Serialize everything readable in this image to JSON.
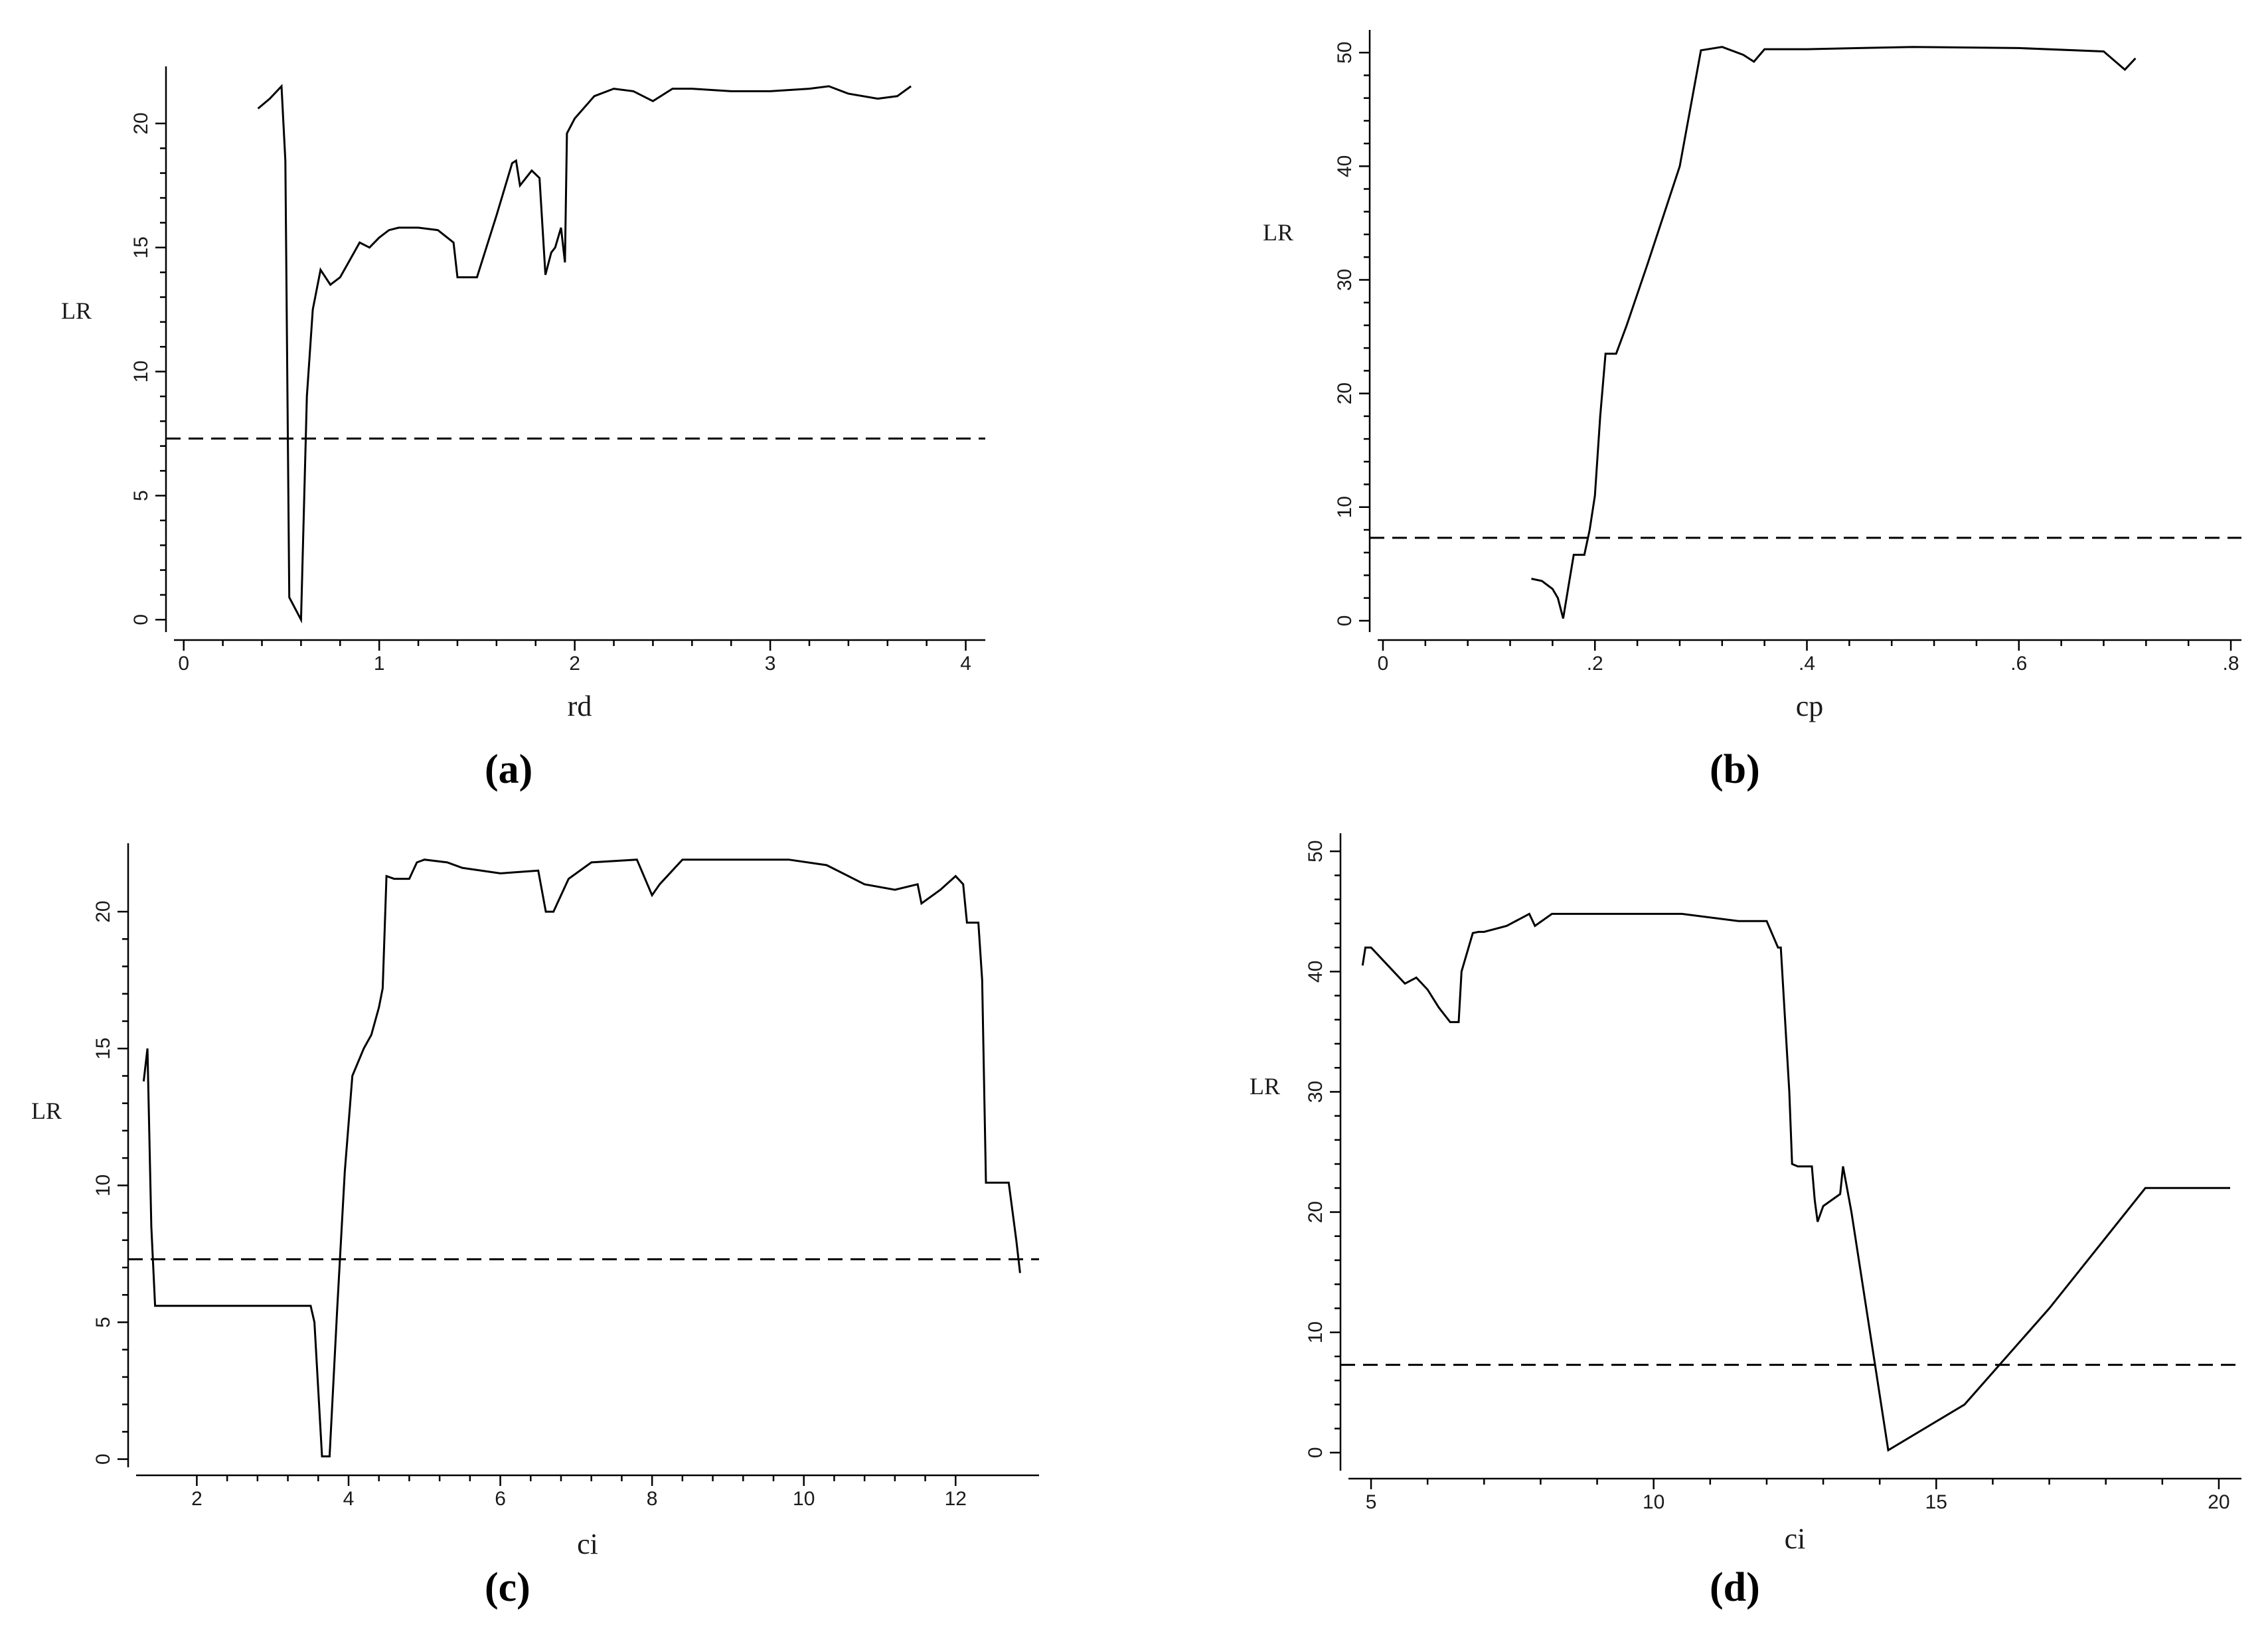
{
  "figure": {
    "panel_labels": [
      "(a)",
      "(b)",
      "(c)",
      "(d)"
    ]
  },
  "chart_data": [
    {
      "type": "line",
      "panel": "(a)",
      "xlabel": "rd",
      "ylabel": "LR",
      "xlim": [
        -0.05,
        4.1
      ],
      "ylim": [
        -0.5,
        22.3
      ],
      "xticks": [
        0,
        1,
        2,
        3,
        4
      ],
      "xtick_labels": [
        "0",
        "1",
        "2",
        "3",
        "4"
      ],
      "yticks": [
        0,
        5,
        10,
        15,
        20
      ],
      "ytick_labels": [
        "0",
        "5",
        "10",
        "15",
        "20"
      ],
      "threshold": 7.3,
      "series": [
        {
          "x": [
            0.38,
            0.44,
            0.5,
            0.52,
            0.54,
            0.6,
            0.63,
            0.66,
            0.7,
            0.75,
            0.8,
            0.85,
            0.9,
            0.95,
            1.0,
            1.05,
            1.1,
            1.2,
            1.3,
            1.38,
            1.4,
            1.5,
            1.6,
            1.68,
            1.7,
            1.72,
            1.75,
            1.78,
            1.82,
            1.85,
            1.88,
            1.9,
            1.93,
            1.95,
            1.96,
            2.0,
            2.1,
            2.2,
            2.3,
            2.4,
            2.5,
            2.6,
            2.8,
            3.0,
            3.2,
            3.3,
            3.4,
            3.55,
            3.65,
            3.72
          ],
          "y": [
            20.6,
            21.0,
            21.5,
            18.5,
            0.9,
            0.0,
            9.0,
            12.5,
            14.1,
            13.5,
            13.8,
            14.5,
            15.2,
            15.0,
            15.4,
            15.7,
            15.8,
            15.8,
            15.7,
            15.2,
            13.8,
            13.8,
            16.3,
            18.4,
            18.5,
            17.5,
            17.8,
            18.1,
            17.8,
            13.9,
            14.8,
            15.0,
            15.8,
            14.4,
            19.6,
            20.2,
            21.1,
            21.4,
            21.3,
            20.9,
            21.4,
            21.4,
            21.3,
            21.3,
            21.4,
            21.5,
            21.2,
            21.0,
            21.1,
            21.5
          ]
        }
      ]
    },
    {
      "type": "line",
      "panel": "(b)",
      "xlabel": "cp",
      "ylabel": "LR",
      "xlim": [
        -0.005,
        0.81
      ],
      "ylim": [
        -1,
        52
      ],
      "xticks": [
        0,
        0.2,
        0.4,
        0.6,
        0.8
      ],
      "xtick_labels": [
        "0",
        ".2",
        ".4",
        ".6",
        ".8"
      ],
      "yticks": [
        0,
        10,
        20,
        30,
        40,
        50
      ],
      "ytick_labels": [
        "0",
        "10",
        "20",
        "30",
        "40",
        "50"
      ],
      "threshold": 7.3,
      "series": [
        {
          "x": [
            0.14,
            0.15,
            0.16,
            0.165,
            0.17,
            0.175,
            0.18,
            0.19,
            0.195,
            0.2,
            0.205,
            0.21,
            0.22,
            0.23,
            0.25,
            0.28,
            0.3,
            0.32,
            0.34,
            0.35,
            0.36,
            0.4,
            0.5,
            0.6,
            0.68,
            0.7,
            0.71
          ],
          "y": [
            3.7,
            3.5,
            2.8,
            2.0,
            0.2,
            3.0,
            5.8,
            5.8,
            8.0,
            11.0,
            18.0,
            23.5,
            23.5,
            26.0,
            31.5,
            40.0,
            50.2,
            50.5,
            49.8,
            49.2,
            50.3,
            50.3,
            50.5,
            50.4,
            50.1,
            48.5,
            49.5
          ]
        }
      ]
    },
    {
      "type": "line",
      "panel": "(c)",
      "xlabel": "ci",
      "ylabel": "LR",
      "xlim": [
        1.2,
        13.1
      ],
      "ylim": [
        -0.3,
        22.5
      ],
      "xticks": [
        2,
        4,
        6,
        8,
        10,
        12
      ],
      "xtick_labels": [
        "2",
        "4",
        "6",
        "8",
        "10",
        "12"
      ],
      "yticks": [
        0,
        5,
        10,
        15,
        20
      ],
      "ytick_labels": [
        "0",
        "5",
        "10",
        "15",
        "20"
      ],
      "threshold": 7.3,
      "series": [
        {
          "x": [
            1.3,
            1.35,
            1.4,
            1.45,
            1.5,
            2.0,
            3.0,
            3.5,
            3.55,
            3.65,
            3.75,
            3.85,
            3.95,
            4.05,
            4.2,
            4.3,
            4.4,
            4.45,
            4.5,
            4.6,
            4.8,
            4.9,
            5.0,
            5.3,
            5.5,
            6.0,
            6.5,
            6.6,
            6.7,
            6.9,
            7.2,
            7.8,
            8.0,
            8.1,
            8.4,
            9.0,
            9.8,
            10.3,
            10.8,
            11.2,
            11.5,
            11.55,
            11.8,
            12.0,
            12.1,
            12.15,
            12.3,
            12.35,
            12.4,
            12.7,
            12.8,
            12.85
          ],
          "y": [
            13.8,
            15.0,
            8.5,
            5.6,
            5.6,
            5.6,
            5.6,
            5.6,
            5.0,
            0.1,
            0.1,
            5.5,
            10.5,
            14.0,
            15.0,
            15.5,
            16.5,
            17.2,
            21.3,
            21.2,
            21.2,
            21.8,
            21.9,
            21.8,
            21.6,
            21.4,
            21.5,
            20.0,
            20.0,
            21.2,
            21.8,
            21.9,
            20.6,
            21.0,
            21.9,
            21.9,
            21.9,
            21.7,
            21.0,
            20.8,
            21.0,
            20.3,
            20.8,
            21.3,
            21.0,
            19.6,
            19.6,
            17.5,
            10.1,
            10.1,
            8.0,
            6.8
          ]
        }
      ]
    },
    {
      "type": "line",
      "panel": "(d)",
      "xlabel": "ci",
      "ylabel": "LR",
      "xlim": [
        4.6,
        20.4
      ],
      "ylim": [
        -1.5,
        51.5
      ],
      "xticks": [
        5,
        10,
        15,
        20
      ],
      "xtick_labels": [
        "5",
        "10",
        "15",
        "20"
      ],
      "yticks": [
        0,
        10,
        20,
        30,
        40,
        50
      ],
      "ytick_labels": [
        "0",
        "10",
        "20",
        "30",
        "40",
        "50"
      ],
      "threshold": 7.3,
      "series": [
        {
          "x": [
            4.85,
            4.9,
            5.0,
            5.2,
            5.4,
            5.6,
            5.8,
            6.0,
            6.2,
            6.4,
            6.55,
            6.6,
            6.8,
            6.9,
            7.0,
            7.4,
            7.8,
            7.9,
            8.2,
            9.0,
            10.0,
            10.5,
            11.5,
            12.0,
            12.2,
            12.25,
            12.4,
            12.45,
            12.55,
            12.8,
            12.85,
            12.9,
            13.0,
            13.3,
            13.35,
            13.5,
            14.15,
            15.5,
            17.0,
            18.7,
            19.0,
            20.2
          ],
          "y": [
            40.5,
            42.0,
            42.0,
            41.0,
            40.0,
            39.0,
            39.5,
            38.5,
            37.0,
            35.8,
            35.8,
            40.0,
            43.2,
            43.3,
            43.3,
            43.8,
            44.8,
            43.8,
            44.8,
            44.8,
            44.8,
            44.8,
            44.2,
            44.2,
            42.0,
            42.0,
            30.0,
            24.0,
            23.8,
            23.8,
            21.0,
            19.2,
            20.5,
            21.5,
            23.8,
            20.0,
            0.2,
            4.0,
            12.0,
            22.0,
            22.0,
            22.0
          ]
        }
      ]
    }
  ]
}
